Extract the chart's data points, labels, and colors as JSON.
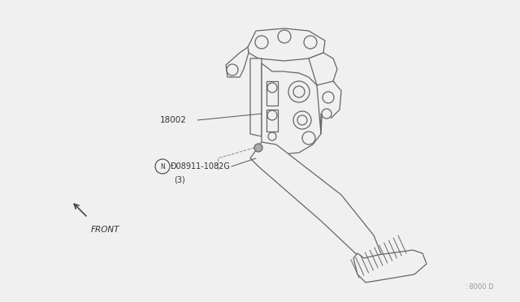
{
  "bg_color": "#f0f0f0",
  "line_color": "#666666",
  "dark_line": "#444444",
  "fig_w": 6.4,
  "fig_h": 3.72,
  "dpi": 100,
  "label_18002": "18002",
  "label_part": "Ð08911-1082G",
  "label_qty": "(3)",
  "label_front": "FRONT",
  "label_ref": ": 8000 D"
}
